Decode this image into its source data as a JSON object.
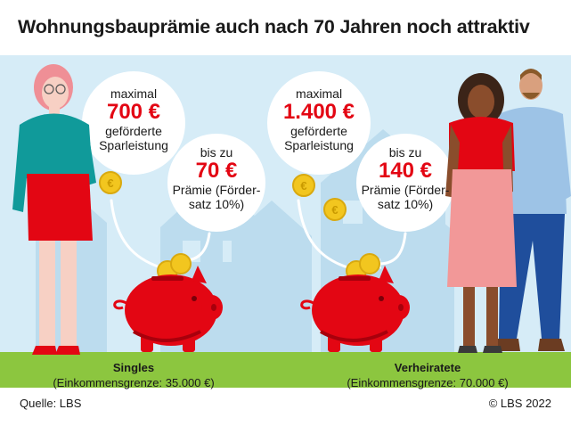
{
  "title": "Wohnungsbauprämie auch nach 70 Jahren noch attraktiv",
  "singles": {
    "group_label": "Singles",
    "income_limit": "(Einkommensgrenze: 35.000 €)",
    "max_prefix": "maximal",
    "max_amount": "700 €",
    "max_line1": "geförderte",
    "max_line2": "Sparleistung",
    "bonus_prefix": "bis zu",
    "bonus_amount": "70 €",
    "bonus_line1": "Prämie (Förder-",
    "bonus_line2": "satz 10%)"
  },
  "married": {
    "group_label": "Verheiratete",
    "income_limit": "(Einkommensgrenze: 70.000 €)",
    "max_prefix": "maximal",
    "max_amount": "1.400 €",
    "max_line1": "geförderte",
    "max_line2": "Sparleistung",
    "bonus_prefix": "bis zu",
    "bonus_amount": "140 €",
    "bonus_line1": "Prämie (Förder-",
    "bonus_line2": "satz 10%)"
  },
  "source": "Quelle: LBS",
  "copyright": "© LBS 2022",
  "colors": {
    "sky": "#d6ecf7",
    "houses": "#b9dcee",
    "grass": "#8cc63f",
    "accent_red": "#e30613",
    "coin": "#f2c61f"
  }
}
